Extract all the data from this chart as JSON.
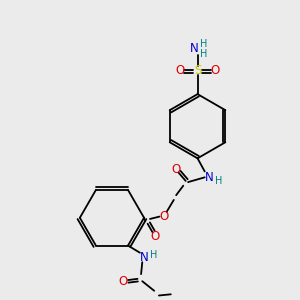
{
  "background_color": "#ebebeb",
  "atom_colors": {
    "C": "#000000",
    "N": "#0000cc",
    "O": "#dd0000",
    "S": "#cccc00",
    "H": "#008080"
  },
  "lw": 1.3,
  "fontsize": 7.5
}
